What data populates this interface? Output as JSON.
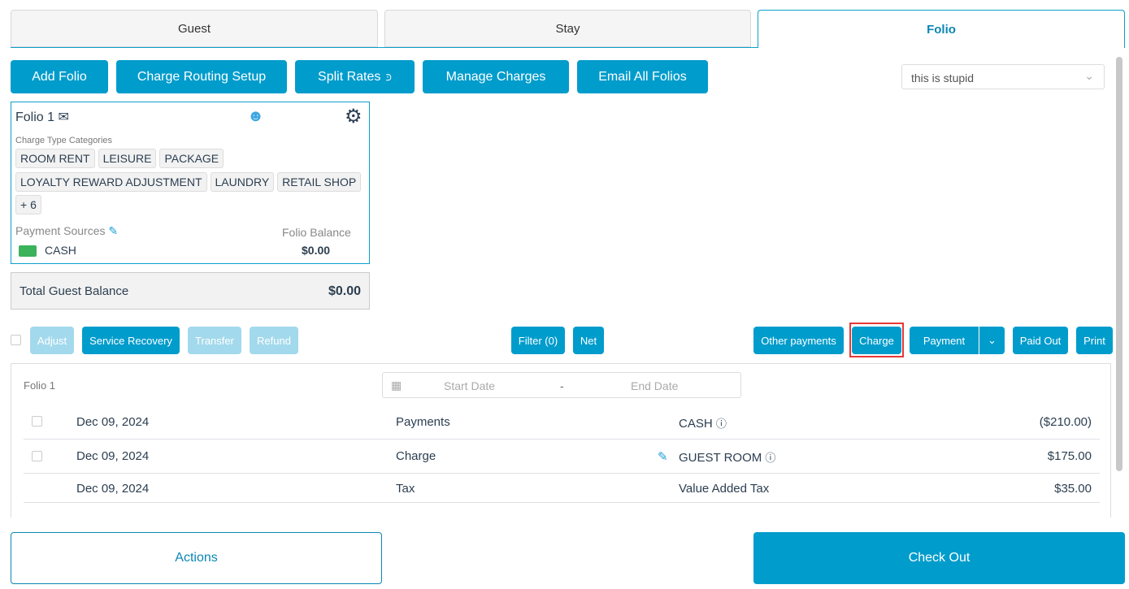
{
  "tabs": [
    {
      "label": "Guest"
    },
    {
      "label": "Stay"
    },
    {
      "label": "Folio"
    }
  ],
  "toolbar": {
    "add_folio": "Add Folio",
    "charge_routing": "Charge Routing Setup",
    "split_rates": "Split Rates",
    "manage_charges": "Manage Charges",
    "email_all": "Email All Folios",
    "select_value": "this is stupid"
  },
  "folio_card": {
    "title": "Folio 1",
    "categories_label": "Charge Type Categories",
    "categories": [
      "ROOM RENT",
      "LEISURE",
      "PACKAGE",
      "LOYALTY REWARD ADJUSTMENT",
      "LAUNDRY",
      "RETAIL SHOP",
      "+ 6"
    ],
    "payment_sources_label": "Payment Sources",
    "payment_source": "CASH",
    "balance_label": "Folio Balance",
    "balance": "$0.00"
  },
  "total": {
    "label": "Total Guest Balance",
    "value": "$0.00"
  },
  "actions": {
    "adjust": "Adjust",
    "service_recovery": "Service Recovery",
    "transfer": "Transfer",
    "refund": "Refund",
    "filter": "Filter (0)",
    "net": "Net",
    "other_payments": "Other payments",
    "charge": "Charge",
    "payment": "Payment",
    "paid_out": "Paid Out",
    "print": "Print"
  },
  "ledger": {
    "folio_label": "Folio 1",
    "start_placeholder": "Start Date",
    "end_placeholder": "End Date",
    "separator": "-",
    "rows": [
      {
        "date": "Dec 09, 2024",
        "type": "Payments",
        "desc": "CASH",
        "amount": "($210.00)",
        "checkbox": true,
        "info": true,
        "edit": false
      },
      {
        "date": "Dec 09, 2024",
        "type": "Charge",
        "desc": "GUEST ROOM",
        "amount": "$175.00",
        "checkbox": true,
        "info": true,
        "edit": true
      },
      {
        "date": "Dec 09, 2024",
        "type": "Tax",
        "desc": "Value Added Tax",
        "amount": "$35.00",
        "checkbox": false,
        "info": false,
        "edit": false
      }
    ]
  },
  "footer": {
    "actions": "Actions",
    "checkout": "Check Out"
  },
  "colors": {
    "primary": "#009ccc",
    "disabled": "#a3d9ec",
    "highlight": "#e53935"
  }
}
